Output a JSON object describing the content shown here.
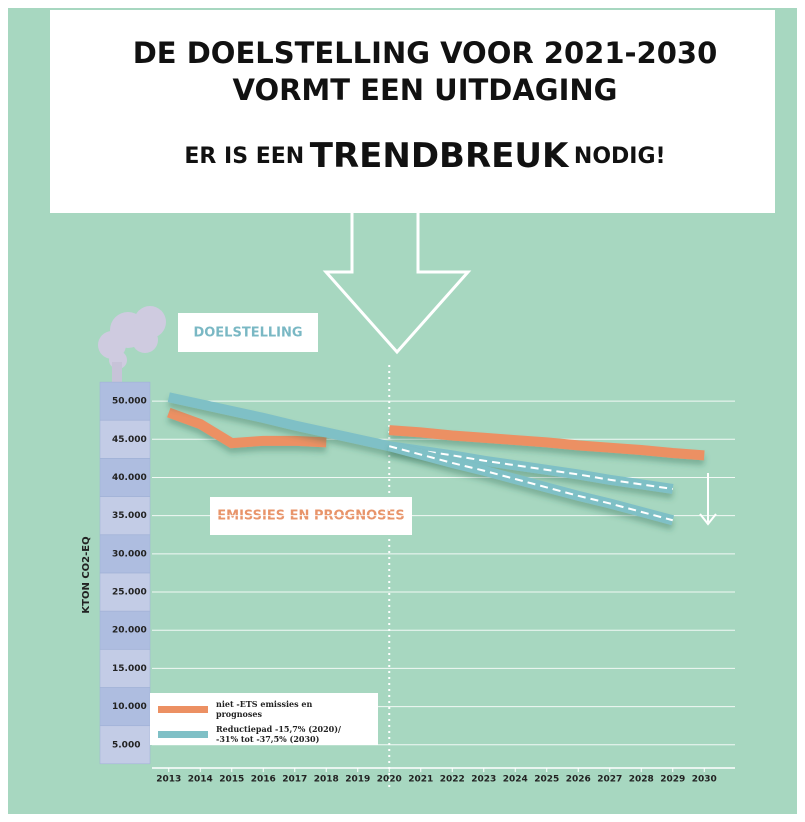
{
  "chart_data": {
    "type": "line",
    "title": [
      "DE DOELSTELLING VOOR 2021-2030",
      "VORMT EEN UITDAGING"
    ],
    "subtitle": [
      "ER IS EEN",
      "TRENDBREUK",
      "NODIG!"
    ],
    "annotations": [
      "DOELSTELLING",
      "EMISSIES EN PROGNOSES"
    ],
    "y_label": "KTON CO2-EQ",
    "x": [
      2013,
      2014,
      2015,
      2016,
      2017,
      2018,
      2019,
      2020,
      2021,
      2022,
      2023,
      2024,
      2025,
      2026,
      2027,
      2028,
      2029,
      2030
    ],
    "xlim": [
      2012.5,
      2030.5
    ],
    "xticks": [
      2013,
      2014,
      2015,
      2016,
      2017,
      2018,
      2019,
      2020,
      2021,
      2022,
      2023,
      2024,
      2025,
      2026,
      2027,
      2028,
      2029,
      2030
    ],
    "ylim": [
      0,
      52500
    ],
    "yticks": [
      {
        "value": 5000,
        "label": "5.000"
      },
      {
        "value": 10000,
        "label": "10.000"
      },
      {
        "value": 15000,
        "label": "15.000"
      },
      {
        "value": 20000,
        "label": "20.000"
      },
      {
        "value": 25000,
        "label": "25.000"
      },
      {
        "value": 30000,
        "label": "30.000"
      },
      {
        "value": 35000,
        "label": "35.000"
      },
      {
        "value": 40000,
        "label": "40.000"
      },
      {
        "value": 45000,
        "label": "45.000"
      },
      {
        "value": 50000,
        "label": "50.000"
      }
    ],
    "grid": true,
    "highlight_x": 2020,
    "series": [
      {
        "name": "niet -ETS emissies en prognoses",
        "color": "#ec9063",
        "values": [
          48500,
          47000,
          44500,
          44800,
          44800,
          44600,
          null,
          46200,
          45900,
          45500,
          45200,
          44900,
          44600,
          44200,
          43900,
          43600,
          43200,
          42900
        ]
      },
      {
        "name": "Reductiepad -15,7% (2020)/ -31% tot -37,5% (2030)",
        "color": "#7fc0c6",
        "values": [
          50500,
          49600,
          48700,
          47800,
          46800,
          45900,
          45000,
          44100,
          43500,
          42900,
          42200,
          41600,
          41000,
          40400,
          39700,
          39100,
          38500,
          null
        ]
      },
      {
        "color": "#7fc0c6",
        "values": [
          null,
          null,
          null,
          null,
          null,
          null,
          null,
          44100,
          43000,
          41900,
          40900,
          39800,
          38700,
          37600,
          36600,
          35500,
          34400,
          null
        ]
      }
    ]
  }
}
